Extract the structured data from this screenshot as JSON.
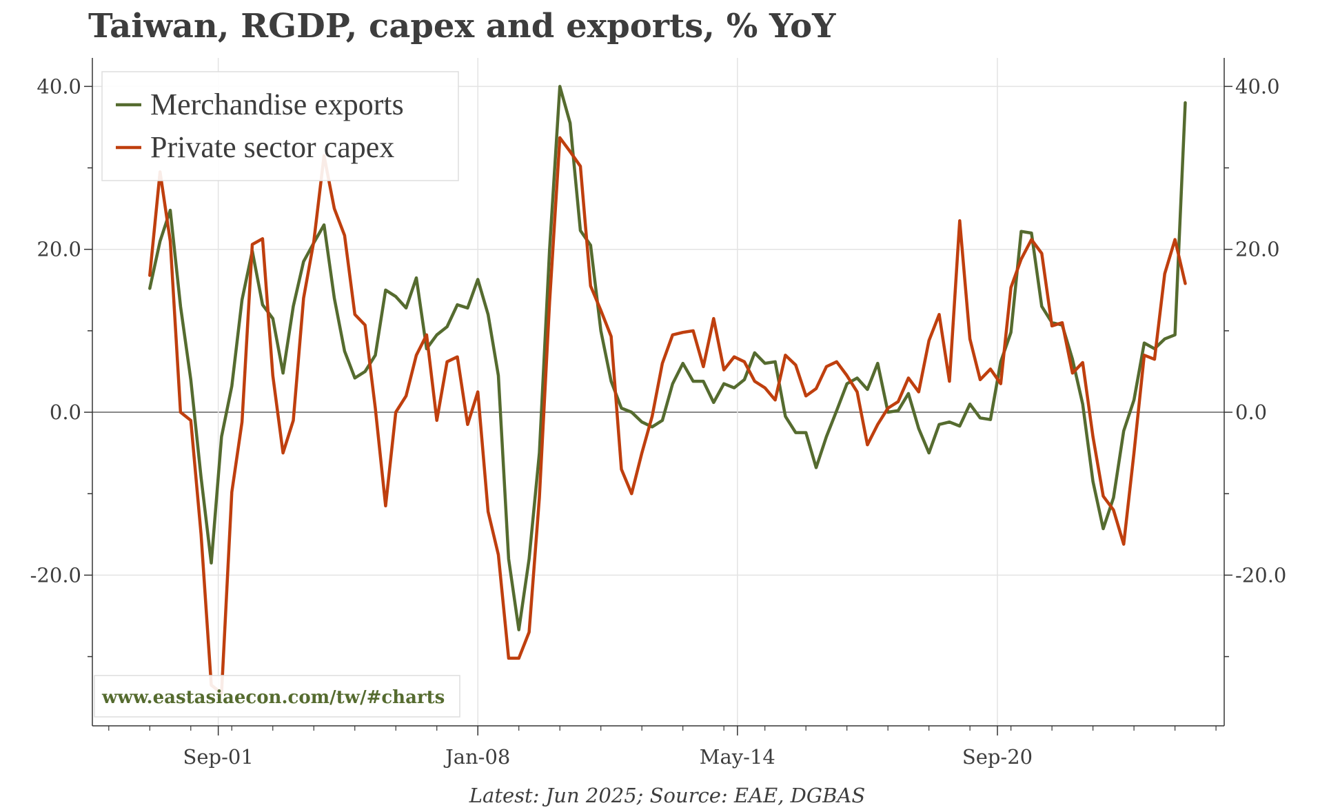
{
  "chart_data": {
    "type": "line",
    "title": "Taiwan, RGDP, capex and exports, % YoY",
    "source": "Latest: Jun 2025; Source: EAE, DGBAS",
    "watermark": "www.eastasiaecon.com/tw/#charts",
    "xlabel": "",
    "ylabel": "",
    "x_tick_labels": [
      "Sep-01",
      "Jan-08",
      "May-14",
      "Sep-20"
    ],
    "x_tick_values": [
      2001.67,
      2008.0,
      2014.33,
      2020.67
    ],
    "x_range": [
      1998.6,
      2026.2
    ],
    "y_ticks": [
      -20,
      0,
      20,
      40
    ],
    "y_tick_labels": [
      "-20.0",
      "0.0",
      "20.0",
      "40.0"
    ],
    "ylim": [
      -38.5,
      43.5
    ],
    "legend": {
      "position": "top-left",
      "entries": [
        "Merchandise exports",
        "Private sector capex"
      ]
    },
    "series": [
      {
        "name": "Merchandise exports",
        "color": "#556b2f",
        "x": [
          2000.0,
          2000.25,
          2000.5,
          2000.75,
          2001.0,
          2001.25,
          2001.5,
          2001.75,
          2002.0,
          2002.25,
          2002.5,
          2002.75,
          2003.0,
          2003.25,
          2003.5,
          2003.75,
          2004.0,
          2004.25,
          2004.5,
          2004.75,
          2005.0,
          2005.25,
          2005.5,
          2005.75,
          2006.0,
          2006.25,
          2006.5,
          2006.75,
          2007.0,
          2007.25,
          2007.5,
          2007.75,
          2008.0,
          2008.25,
          2008.5,
          2008.75,
          2009.0,
          2009.25,
          2009.5,
          2009.75,
          2010.0,
          2010.25,
          2010.5,
          2010.75,
          2011.0,
          2011.25,
          2011.5,
          2011.75,
          2012.0,
          2012.25,
          2012.5,
          2012.75,
          2013.0,
          2013.25,
          2013.5,
          2013.75,
          2014.0,
          2014.25,
          2014.5,
          2014.75,
          2015.0,
          2015.25,
          2015.5,
          2015.75,
          2016.0,
          2016.25,
          2016.5,
          2016.75,
          2017.0,
          2017.25,
          2017.5,
          2017.75,
          2018.0,
          2018.25,
          2018.5,
          2018.75,
          2019.0,
          2019.25,
          2019.5,
          2019.75,
          2020.0,
          2020.25,
          2020.5,
          2020.75,
          2021.0,
          2021.25,
          2021.5,
          2021.75,
          2022.0,
          2022.25,
          2022.5,
          2022.75,
          2023.0,
          2023.25,
          2023.5,
          2023.75,
          2024.0,
          2024.25,
          2024.5,
          2024.75,
          2025.0,
          2025.25
        ],
        "y": [
          15.2,
          21.0,
          24.8,
          13.0,
          4.0,
          -8.0,
          -18.5,
          -3.0,
          3.2,
          13.8,
          19.8,
          13.2,
          11.5,
          4.8,
          13.0,
          18.5,
          20.8,
          23.0,
          14.0,
          7.5,
          4.2,
          5.0,
          7.0,
          15.0,
          14.2,
          12.8,
          16.5,
          7.8,
          9.5,
          10.5,
          13.2,
          12.8,
          16.3,
          12.0,
          4.5,
          -18.0,
          -26.7,
          -18.0,
          -5.0,
          20.0,
          40.0,
          35.5,
          22.3,
          20.5,
          10.0,
          3.8,
          0.5,
          0.0,
          -1.2,
          -1.8,
          -1.0,
          3.5,
          6.0,
          3.8,
          3.8,
          1.2,
          3.5,
          3.0,
          4.0,
          7.3,
          6.0,
          6.2,
          -0.5,
          -2.5,
          -2.5,
          -6.8,
          -3.0,
          0.2,
          3.5,
          4.2,
          2.8,
          6.0,
          0.0,
          0.2,
          2.3,
          -2.0,
          -5.0,
          -1.5,
          -1.2,
          -1.7,
          1.0,
          -0.7,
          -0.9,
          6.2,
          9.8,
          22.2,
          22.0,
          13.0,
          11.0,
          10.7,
          6.5,
          1.0,
          -8.5,
          -14.3,
          -10.5,
          -2.3,
          1.5,
          8.5,
          7.8,
          9.0,
          9.5,
          38.0
        ]
      },
      {
        "name": "Private sector capex",
        "color": "#bf3f0e",
        "x": [
          2000.0,
          2000.25,
          2000.5,
          2000.75,
          2001.0,
          2001.25,
          2001.5,
          2001.75,
          2002.0,
          2002.25,
          2002.5,
          2002.75,
          2003.0,
          2003.25,
          2003.5,
          2003.75,
          2004.0,
          2004.25,
          2004.5,
          2004.75,
          2005.0,
          2005.25,
          2005.5,
          2005.75,
          2006.0,
          2006.25,
          2006.5,
          2006.75,
          2007.0,
          2007.25,
          2007.5,
          2007.75,
          2008.0,
          2008.25,
          2008.5,
          2008.75,
          2009.0,
          2009.25,
          2009.5,
          2009.75,
          2010.0,
          2010.25,
          2010.5,
          2010.75,
          2011.0,
          2011.25,
          2011.5,
          2011.75,
          2012.0,
          2012.25,
          2012.5,
          2012.75,
          2013.0,
          2013.25,
          2013.5,
          2013.75,
          2014.0,
          2014.25,
          2014.5,
          2014.75,
          2015.0,
          2015.25,
          2015.5,
          2015.75,
          2016.0,
          2016.25,
          2016.5,
          2016.75,
          2017.0,
          2017.25,
          2017.5,
          2017.75,
          2018.0,
          2018.25,
          2018.5,
          2018.75,
          2019.0,
          2019.25,
          2019.5,
          2019.75,
          2020.0,
          2020.25,
          2020.5,
          2020.75,
          2021.0,
          2021.25,
          2021.5,
          2021.75,
          2022.0,
          2022.25,
          2022.5,
          2022.75,
          2023.0,
          2023.25,
          2023.5,
          2023.75,
          2024.0,
          2024.25,
          2024.5,
          2024.75,
          2025.0,
          2025.25
        ],
        "y": [
          16.8,
          29.5,
          21.0,
          0.0,
          -1.0,
          -15.0,
          -33.5,
          -34.5,
          -9.8,
          -1.2,
          20.6,
          21.3,
          4.5,
          -5.0,
          -1.0,
          14.0,
          21.0,
          31.5,
          25.0,
          21.7,
          12.0,
          10.7,
          0.5,
          -11.5,
          0.0,
          2.0,
          7.0,
          9.5,
          -1.0,
          6.2,
          6.8,
          -1.5,
          2.5,
          -12.2,
          -17.5,
          -30.2,
          -30.2,
          -27.0,
          -10.5,
          13.5,
          33.7,
          32.0,
          30.2,
          15.5,
          12.5,
          9.3,
          -7.0,
          -10.0,
          -5.0,
          -0.5,
          6.0,
          9.5,
          9.8,
          10.0,
          5.6,
          11.5,
          5.2,
          6.8,
          6.2,
          3.8,
          3.0,
          1.5,
          7.0,
          5.8,
          2.0,
          2.9,
          5.6,
          6.2,
          4.5,
          2.5,
          -4.0,
          -1.5,
          0.5,
          1.3,
          4.2,
          2.5,
          8.8,
          12.0,
          3.8,
          23.5,
          9.0,
          4.0,
          5.3,
          3.5,
          15.3,
          18.8,
          21.2,
          19.5,
          10.6,
          11.0,
          4.8,
          6.1,
          -3.0,
          -10.3,
          -12.0,
          -16.2,
          -5.0,
          7.0,
          6.5,
          17.0,
          21.2,
          15.8
        ]
      }
    ]
  }
}
